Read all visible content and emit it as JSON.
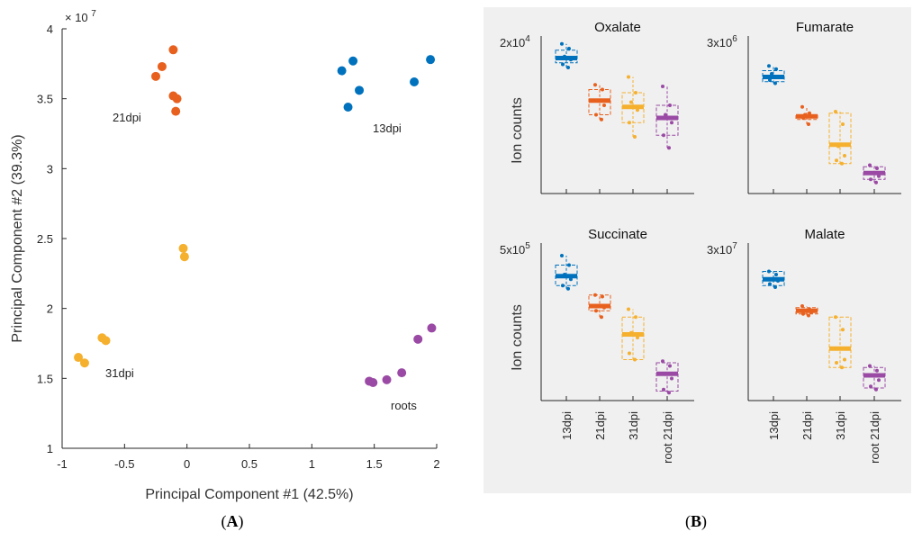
{
  "colors": {
    "13dpi": "#0072bd",
    "21dpi": "#e8601e",
    "31dpi": "#f5b02e",
    "roots": "#9a4aa4",
    "root 21dpi": "#9a4aa4",
    "axis": "#262626",
    "panel_b_bg": "#f0f0f0"
  },
  "captions": {
    "a": "A",
    "b": "B"
  },
  "chart_data": [
    {
      "id": "pca",
      "type": "scatter",
      "title": "",
      "xlabel": "Principal Component #1 (42.5%)",
      "ylabel": "Principal Component #2 (39.3%)",
      "xlim": [
        -1,
        2
      ],
      "ylim": [
        1,
        4
      ],
      "y_multiplier_label": "× 10",
      "y_multiplier_exp": "7",
      "xticks": [
        "-1",
        "-0.5",
        "0",
        "0.5",
        "1",
        "1.5",
        "2"
      ],
      "yticks": [
        "1",
        "1.5",
        "2",
        "2.5",
        "3",
        "3.5",
        "4"
      ],
      "series": [
        {
          "name": "21dpi",
          "label": "21dpi",
          "points": [
            [
              -0.11,
              3.85
            ],
            [
              -0.2,
              3.73
            ],
            [
              -0.25,
              3.66
            ],
            [
              -0.11,
              3.52
            ],
            [
              -0.08,
              3.5
            ],
            [
              -0.09,
              3.41
            ]
          ]
        },
        {
          "name": "13dpi",
          "label": "13dpi",
          "points": [
            [
              1.24,
              3.7
            ],
            [
              1.33,
              3.77
            ],
            [
              1.38,
              3.56
            ],
            [
              1.29,
              3.44
            ],
            [
              1.82,
              3.62
            ],
            [
              1.95,
              3.78
            ]
          ]
        },
        {
          "name": "31dpi",
          "label": "31dpi",
          "points": [
            [
              -0.03,
              2.43
            ],
            [
              -0.02,
              2.37
            ],
            [
              -0.68,
              1.79
            ],
            [
              -0.65,
              1.77
            ],
            [
              -0.87,
              1.65
            ],
            [
              -0.82,
              1.61
            ]
          ]
        },
        {
          "name": "roots",
          "label": "roots",
          "points": [
            [
              1.46,
              1.48
            ],
            [
              1.49,
              1.47
            ],
            [
              1.6,
              1.49
            ],
            [
              1.72,
              1.54
            ],
            [
              1.85,
              1.78
            ],
            [
              1.96,
              1.86
            ]
          ]
        }
      ]
    },
    {
      "id": "oxalate",
      "type": "box",
      "title": "Oxalate",
      "ylabel": "Ion counts",
      "ymax_label": "2x10",
      "ymax_exp": "4",
      "categories": [
        "13dpi",
        "21dpi",
        "31dpi",
        "root 21dpi"
      ],
      "boxes": [
        {
          "q1": 0.83,
          "median": 0.86,
          "q3": 0.91,
          "min": 0.8,
          "max": 0.95,
          "points": [
            0.95,
            0.92,
            0.87,
            0.85,
            0.82,
            0.8
          ]
        },
        {
          "q1": 0.5,
          "median": 0.59,
          "q3": 0.66,
          "min": 0.47,
          "max": 0.69,
          "points": [
            0.69,
            0.66,
            0.59,
            0.56,
            0.5,
            0.47
          ]
        },
        {
          "q1": 0.45,
          "median": 0.55,
          "q3": 0.64,
          "min": 0.36,
          "max": 0.74,
          "points": [
            0.74,
            0.64,
            0.58,
            0.53,
            0.45,
            0.36
          ]
        },
        {
          "q1": 0.37,
          "median": 0.48,
          "q3": 0.56,
          "min": 0.29,
          "max": 0.68,
          "points": [
            0.68,
            0.56,
            0.5,
            0.45,
            0.37,
            0.29
          ]
        }
      ]
    },
    {
      "id": "fumarate",
      "type": "box",
      "title": "Fumarate",
      "ylabel": "",
      "ymax_label": "3x10",
      "ymax_exp": "6",
      "categories": [
        "13dpi",
        "21dpi",
        "31dpi",
        "root 21dpi"
      ],
      "boxes": [
        {
          "q1": 0.71,
          "median": 0.74,
          "q3": 0.78,
          "min": 0.7,
          "max": 0.81,
          "points": [
            0.81,
            0.79,
            0.76,
            0.74,
            0.72,
            0.7
          ]
        },
        {
          "q1": 0.47,
          "median": 0.49,
          "q3": 0.5,
          "min": 0.44,
          "max": 0.55,
          "points": [
            0.55,
            0.51,
            0.5,
            0.49,
            0.48,
            0.44
          ]
        },
        {
          "q1": 0.19,
          "median": 0.31,
          "q3": 0.51,
          "min": 0.19,
          "max": 0.52,
          "points": [
            0.52,
            0.44,
            0.3,
            0.24,
            0.21,
            0.19
          ]
        },
        {
          "q1": 0.09,
          "median": 0.13,
          "q3": 0.17,
          "min": 0.07,
          "max": 0.18,
          "points": [
            0.18,
            0.16,
            0.13,
            0.11,
            0.09,
            0.07
          ]
        }
      ]
    },
    {
      "id": "succinate",
      "type": "box",
      "title": "Succinate",
      "ylabel": "Ion counts",
      "ymax_label": "5x10",
      "ymax_exp": "5",
      "categories": [
        "13dpi",
        "21dpi",
        "31dpi",
        "root 21dpi"
      ],
      "boxes": [
        {
          "q1": 0.73,
          "median": 0.79,
          "q3": 0.86,
          "min": 0.71,
          "max": 0.92,
          "points": [
            0.92,
            0.86,
            0.8,
            0.77,
            0.73,
            0.71
          ]
        },
        {
          "q1": 0.57,
          "median": 0.6,
          "q3": 0.67,
          "min": 0.53,
          "max": 0.67,
          "points": [
            0.67,
            0.66,
            0.6,
            0.59,
            0.57,
            0.53
          ]
        },
        {
          "q1": 0.26,
          "median": 0.42,
          "q3": 0.53,
          "min": 0.26,
          "max": 0.58,
          "points": [
            0.58,
            0.53,
            0.43,
            0.4,
            0.3,
            0.26
          ]
        },
        {
          "q1": 0.06,
          "median": 0.17,
          "q3": 0.24,
          "min": 0.05,
          "max": 0.25,
          "points": [
            0.25,
            0.22,
            0.17,
            0.14,
            0.07,
            0.05
          ]
        }
      ]
    },
    {
      "id": "malate",
      "type": "box",
      "title": "Malate",
      "ylabel": "",
      "ymax_label": "3x10",
      "ymax_exp": "7",
      "categories": [
        "13dpi",
        "21dpi",
        "31dpi",
        "root 21dpi"
      ],
      "boxes": [
        {
          "q1": 0.73,
          "median": 0.77,
          "q3": 0.82,
          "min": 0.72,
          "max": 0.82,
          "points": [
            0.82,
            0.8,
            0.77,
            0.76,
            0.74,
            0.72
          ]
        },
        {
          "q1": 0.55,
          "median": 0.57,
          "q3": 0.59,
          "min": 0.54,
          "max": 0.6,
          "points": [
            0.6,
            0.58,
            0.57,
            0.56,
            0.55,
            0.54
          ]
        },
        {
          "q1": 0.21,
          "median": 0.33,
          "q3": 0.53,
          "min": 0.21,
          "max": 0.53,
          "points": [
            0.53,
            0.45,
            0.33,
            0.26,
            0.24,
            0.21
          ]
        },
        {
          "q1": 0.08,
          "median": 0.16,
          "q3": 0.21,
          "min": 0.07,
          "max": 0.22,
          "points": [
            0.22,
            0.19,
            0.16,
            0.13,
            0.09,
            0.07
          ]
        }
      ]
    }
  ]
}
